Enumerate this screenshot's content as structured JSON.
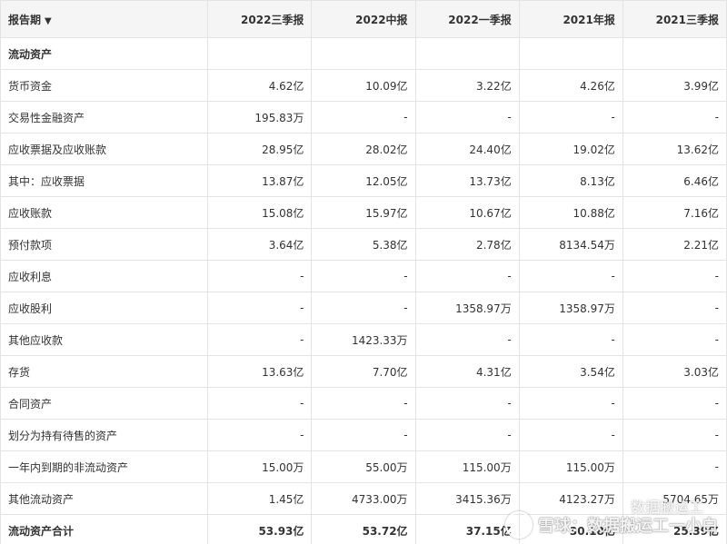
{
  "table": {
    "period_header": "报告期",
    "columns": [
      "2022三季报",
      "2022中报",
      "2022一季报",
      "2021年报",
      "2021三季报"
    ],
    "rows": [
      {
        "label": "流动资产",
        "values": [
          "",
          "",
          "",
          "",
          ""
        ],
        "bold": true
      },
      {
        "label": "货币资金",
        "values": [
          "4.62亿",
          "10.09亿",
          "3.22亿",
          "4.26亿",
          "3.99亿"
        ]
      },
      {
        "label": "交易性金融资产",
        "values": [
          "195.83万",
          "-",
          "-",
          "-",
          "-"
        ]
      },
      {
        "label": "应收票据及应收账款",
        "values": [
          "28.95亿",
          "28.02亿",
          "24.40亿",
          "19.02亿",
          "13.62亿"
        ]
      },
      {
        "label": "其中：应收票据",
        "values": [
          "13.87亿",
          "12.05亿",
          "13.73亿",
          "8.13亿",
          "6.46亿"
        ]
      },
      {
        "label": "应收账款",
        "values": [
          "15.08亿",
          "15.97亿",
          "10.67亿",
          "10.88亿",
          "7.16亿"
        ]
      },
      {
        "label": "预付款项",
        "values": [
          "3.64亿",
          "5.38亿",
          "2.78亿",
          "8134.54万",
          "2.21亿"
        ]
      },
      {
        "label": "应收利息",
        "values": [
          "-",
          "-",
          "-",
          "-",
          "-"
        ]
      },
      {
        "label": "应收股利",
        "values": [
          "-",
          "-",
          "1358.97万",
          "1358.97万",
          "-"
        ]
      },
      {
        "label": "其他应收款",
        "values": [
          "-",
          "1423.33万",
          "-",
          "-",
          "-"
        ]
      },
      {
        "label": "存货",
        "values": [
          "13.63亿",
          "7.70亿",
          "4.31亿",
          "3.54亿",
          "3.03亿"
        ]
      },
      {
        "label": "合同资产",
        "values": [
          "-",
          "-",
          "-",
          "-",
          "-"
        ]
      },
      {
        "label": "划分为持有待售的资产",
        "values": [
          "-",
          "-",
          "-",
          "-",
          "-"
        ]
      },
      {
        "label": "一年内到期的非流动资产",
        "values": [
          "15.00万",
          "55.00万",
          "115.00万",
          "115.00万",
          "-"
        ]
      },
      {
        "label": "其他流动资产",
        "values": [
          "1.45亿",
          "4733.00万",
          "3415.36万",
          "4123.27万",
          "5704.65万"
        ]
      },
      {
        "label": "流动资产合计",
        "values": [
          "53.93亿",
          "53.72亿",
          "37.15亿",
          "30.18亿",
          "25.39亿"
        ],
        "bold": true
      }
    ]
  },
  "watermark": {
    "main": "雪球：数据搬运工一小白",
    "secondary": "数据搬运工"
  }
}
